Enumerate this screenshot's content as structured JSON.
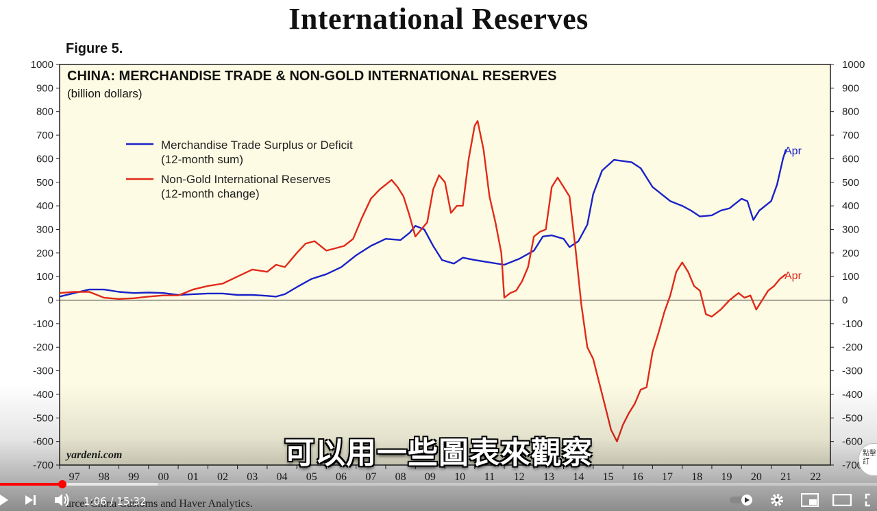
{
  "slide": {
    "title": "International Reserves",
    "figure_label": "Figure 5.",
    "source": "urce: China Customs and Haver Analytics."
  },
  "chart_data": {
    "type": "line",
    "title": "CHINA: MERCHANDISE TRADE & NON-GOLD INTERNATIONAL RESERVES",
    "subtitle": "(billion dollars)",
    "watermark": "yardeni.com",
    "ylim": [
      -700,
      1000
    ],
    "yticks": [
      1000,
      900,
      800,
      700,
      600,
      500,
      400,
      300,
      200,
      100,
      0,
      -100,
      -200,
      -300,
      -400,
      -500,
      -600,
      -700
    ],
    "x_labels": [
      "97",
      "98",
      "99",
      "00",
      "01",
      "02",
      "03",
      "04",
      "05",
      "06",
      "07",
      "08",
      "09",
      "10",
      "11",
      "12",
      "13",
      "14",
      "15",
      "16",
      "17",
      "18",
      "19",
      "20",
      "21",
      "22"
    ],
    "xlim": [
      1997,
      2023
    ],
    "grid": false,
    "zero_line": true,
    "legend_placement": "upper-left",
    "series": [
      {
        "name": "Merchandise Trade Surplus or Deficit",
        "name_line2": "(12-month sum)",
        "color": "#1a22c8",
        "end_label": "Apr",
        "x": [
          1997.0,
          1997.5,
          1998.0,
          1998.5,
          1999.0,
          1999.5,
          2000.0,
          2000.5,
          2001.0,
          2001.5,
          2002.0,
          2002.5,
          2003.0,
          2003.5,
          2004.0,
          2004.3,
          2004.6,
          2005.0,
          2005.5,
          2006.0,
          2006.5,
          2007.0,
          2007.5,
          2008.0,
          2008.5,
          2008.8,
          2009.0,
          2009.3,
          2009.6,
          2009.9,
          2010.3,
          2010.6,
          2011.0,
          2011.5,
          2012.0,
          2012.5,
          2013.0,
          2013.3,
          2013.6,
          2014.0,
          2014.2,
          2014.5,
          2014.8,
          2015.0,
          2015.3,
          2015.7,
          2016.0,
          2016.3,
          2016.6,
          2017.0,
          2017.3,
          2017.6,
          2018.0,
          2018.3,
          2018.6,
          2019.0,
          2019.3,
          2019.6,
          2020.0,
          2020.2,
          2020.4,
          2020.6,
          2021.0,
          2021.2,
          2021.4,
          2021.5
        ],
        "values": [
          15,
          30,
          45,
          45,
          35,
          30,
          32,
          30,
          22,
          25,
          28,
          28,
          22,
          22,
          18,
          15,
          25,
          55,
          90,
          110,
          140,
          190,
          230,
          260,
          255,
          285,
          315,
          300,
          230,
          170,
          155,
          180,
          170,
          160,
          150,
          175,
          210,
          270,
          275,
          260,
          225,
          250,
          320,
          450,
          550,
          595,
          590,
          585,
          560,
          480,
          450,
          420,
          400,
          380,
          355,
          360,
          380,
          390,
          430,
          420,
          340,
          380,
          420,
          490,
          600,
          640
        ]
      },
      {
        "name": "Non-Gold International Reserves",
        "name_line2": "(12-month change)",
        "color": "#e02a1a",
        "end_label": "Apr",
        "x": [
          1997.0,
          1997.5,
          1998.0,
          1998.5,
          1999.0,
          1999.5,
          2000.0,
          2000.5,
          2001.0,
          2001.5,
          2002.0,
          2002.5,
          2003.0,
          2003.5,
          2004.0,
          2004.3,
          2004.6,
          2005.0,
          2005.3,
          2005.6,
          2006.0,
          2006.3,
          2006.6,
          2006.9,
          2007.2,
          2007.5,
          2007.8,
          2008.0,
          2008.2,
          2008.4,
          2008.6,
          2008.8,
          2009.0,
          2009.2,
          2009.4,
          2009.6,
          2009.8,
          2010.0,
          2010.2,
          2010.4,
          2010.6,
          2010.8,
          2011.0,
          2011.1,
          2011.3,
          2011.5,
          2011.7,
          2011.9,
          2012.0,
          2012.2,
          2012.4,
          2012.6,
          2012.8,
          2013.0,
          2013.2,
          2013.4,
          2013.6,
          2013.8,
          2014.0,
          2014.2,
          2014.4,
          2014.6,
          2014.8,
          2015.0,
          2015.2,
          2015.4,
          2015.6,
          2015.8,
          2016.0,
          2016.2,
          2016.4,
          2016.6,
          2016.8,
          2017.0,
          2017.2,
          2017.4,
          2017.6,
          2017.8,
          2018.0,
          2018.2,
          2018.4,
          2018.6,
          2018.8,
          2019.0,
          2019.3,
          2019.6,
          2019.9,
          2020.1,
          2020.3,
          2020.5,
          2020.7,
          2020.9,
          2021.1,
          2021.3,
          2021.5
        ],
        "values": [
          30,
          35,
          35,
          10,
          5,
          8,
          15,
          20,
          20,
          45,
          60,
          70,
          100,
          130,
          120,
          150,
          140,
          200,
          240,
          250,
          210,
          220,
          230,
          260,
          350,
          430,
          470,
          490,
          510,
          480,
          440,
          360,
          270,
          300,
          330,
          470,
          530,
          500,
          370,
          400,
          400,
          600,
          740,
          760,
          640,
          440,
          330,
          200,
          10,
          30,
          40,
          80,
          140,
          270,
          290,
          300,
          480,
          520,
          480,
          440,
          220,
          -20,
          -200,
          -250,
          -350,
          -450,
          -550,
          -600,
          -530,
          -480,
          -440,
          -380,
          -370,
          -220,
          -140,
          -50,
          20,
          120,
          160,
          120,
          60,
          40,
          -60,
          -70,
          -40,
          0,
          30,
          10,
          20,
          -40,
          0,
          40,
          60,
          90,
          110
        ]
      }
    ]
  },
  "subtitle_caption": "可以用一些圖表來觀察",
  "watermark_subscribe": [
    "點擊",
    "訂"
  ],
  "player": {
    "time_current": "1:06",
    "time_total": "15:32",
    "progress_fraction": 0.0708,
    "loaded_fraction": 0.18,
    "icons": [
      "play-icon",
      "next-icon",
      "volume-icon",
      "autoplay-toggle",
      "settings-icon",
      "miniplayer-icon",
      "theater-icon",
      "fullscreen-icon"
    ]
  }
}
